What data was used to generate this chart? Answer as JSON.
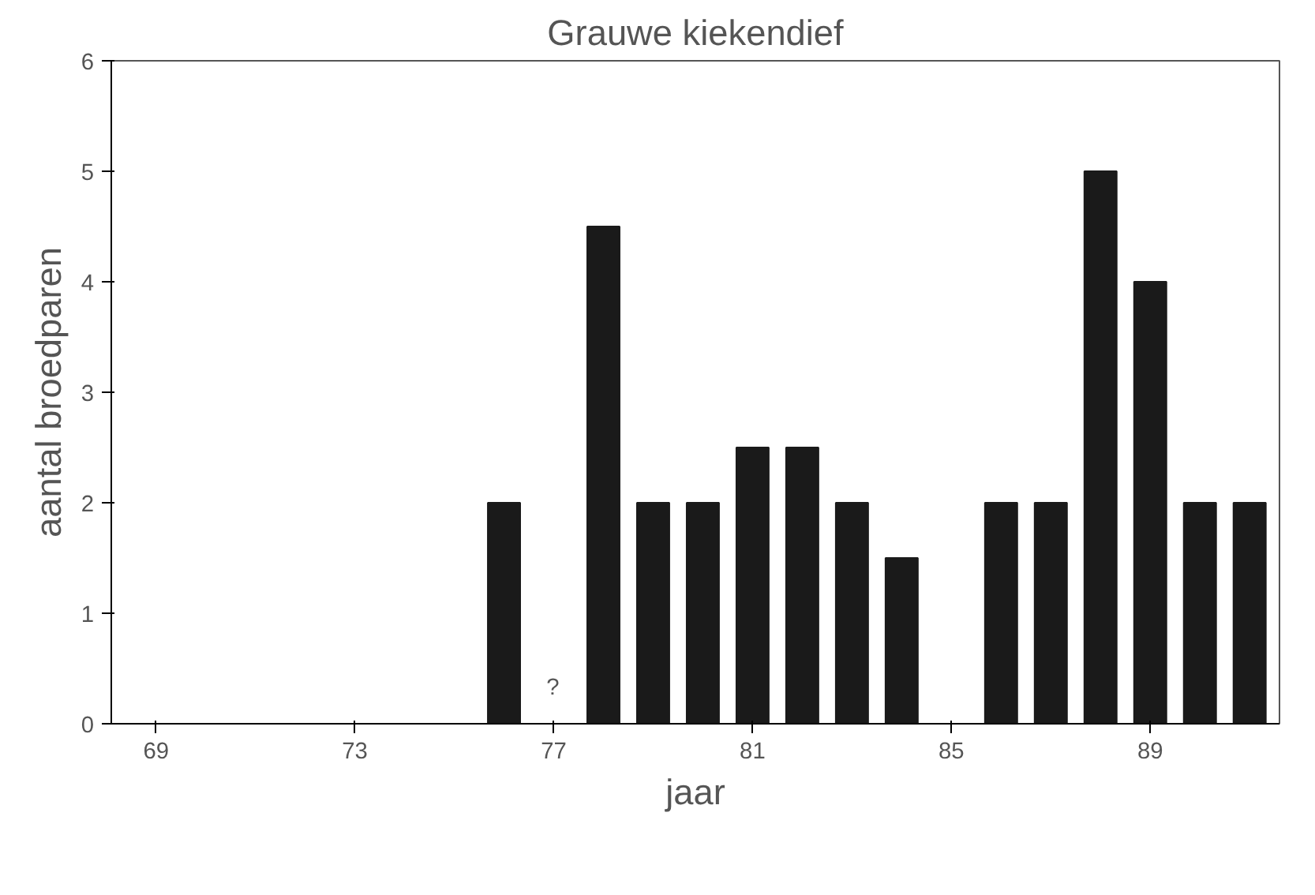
{
  "chart_data": {
    "type": "bar",
    "title": "Grauwe kiekendief",
    "xlabel": "jaar",
    "ylabel": "aantal broedparen",
    "x": [
      76,
      78,
      79,
      80,
      81,
      82,
      83,
      84,
      86,
      87,
      88,
      89,
      90,
      91
    ],
    "values": [
      2,
      4.5,
      2,
      2,
      2.5,
      2.5,
      2,
      1.5,
      2,
      2,
      5,
      4,
      2,
      2
    ],
    "color": "#1a1a1a",
    "xlim": [
      68.1,
      91.6
    ],
    "xticks": [
      69,
      73,
      77,
      81,
      85,
      89
    ],
    "ylim": [
      0,
      6
    ],
    "yticks": [
      0,
      1,
      2,
      3,
      4,
      5,
      6
    ],
    "grid": false,
    "annotations": [
      "?"
    ]
  }
}
